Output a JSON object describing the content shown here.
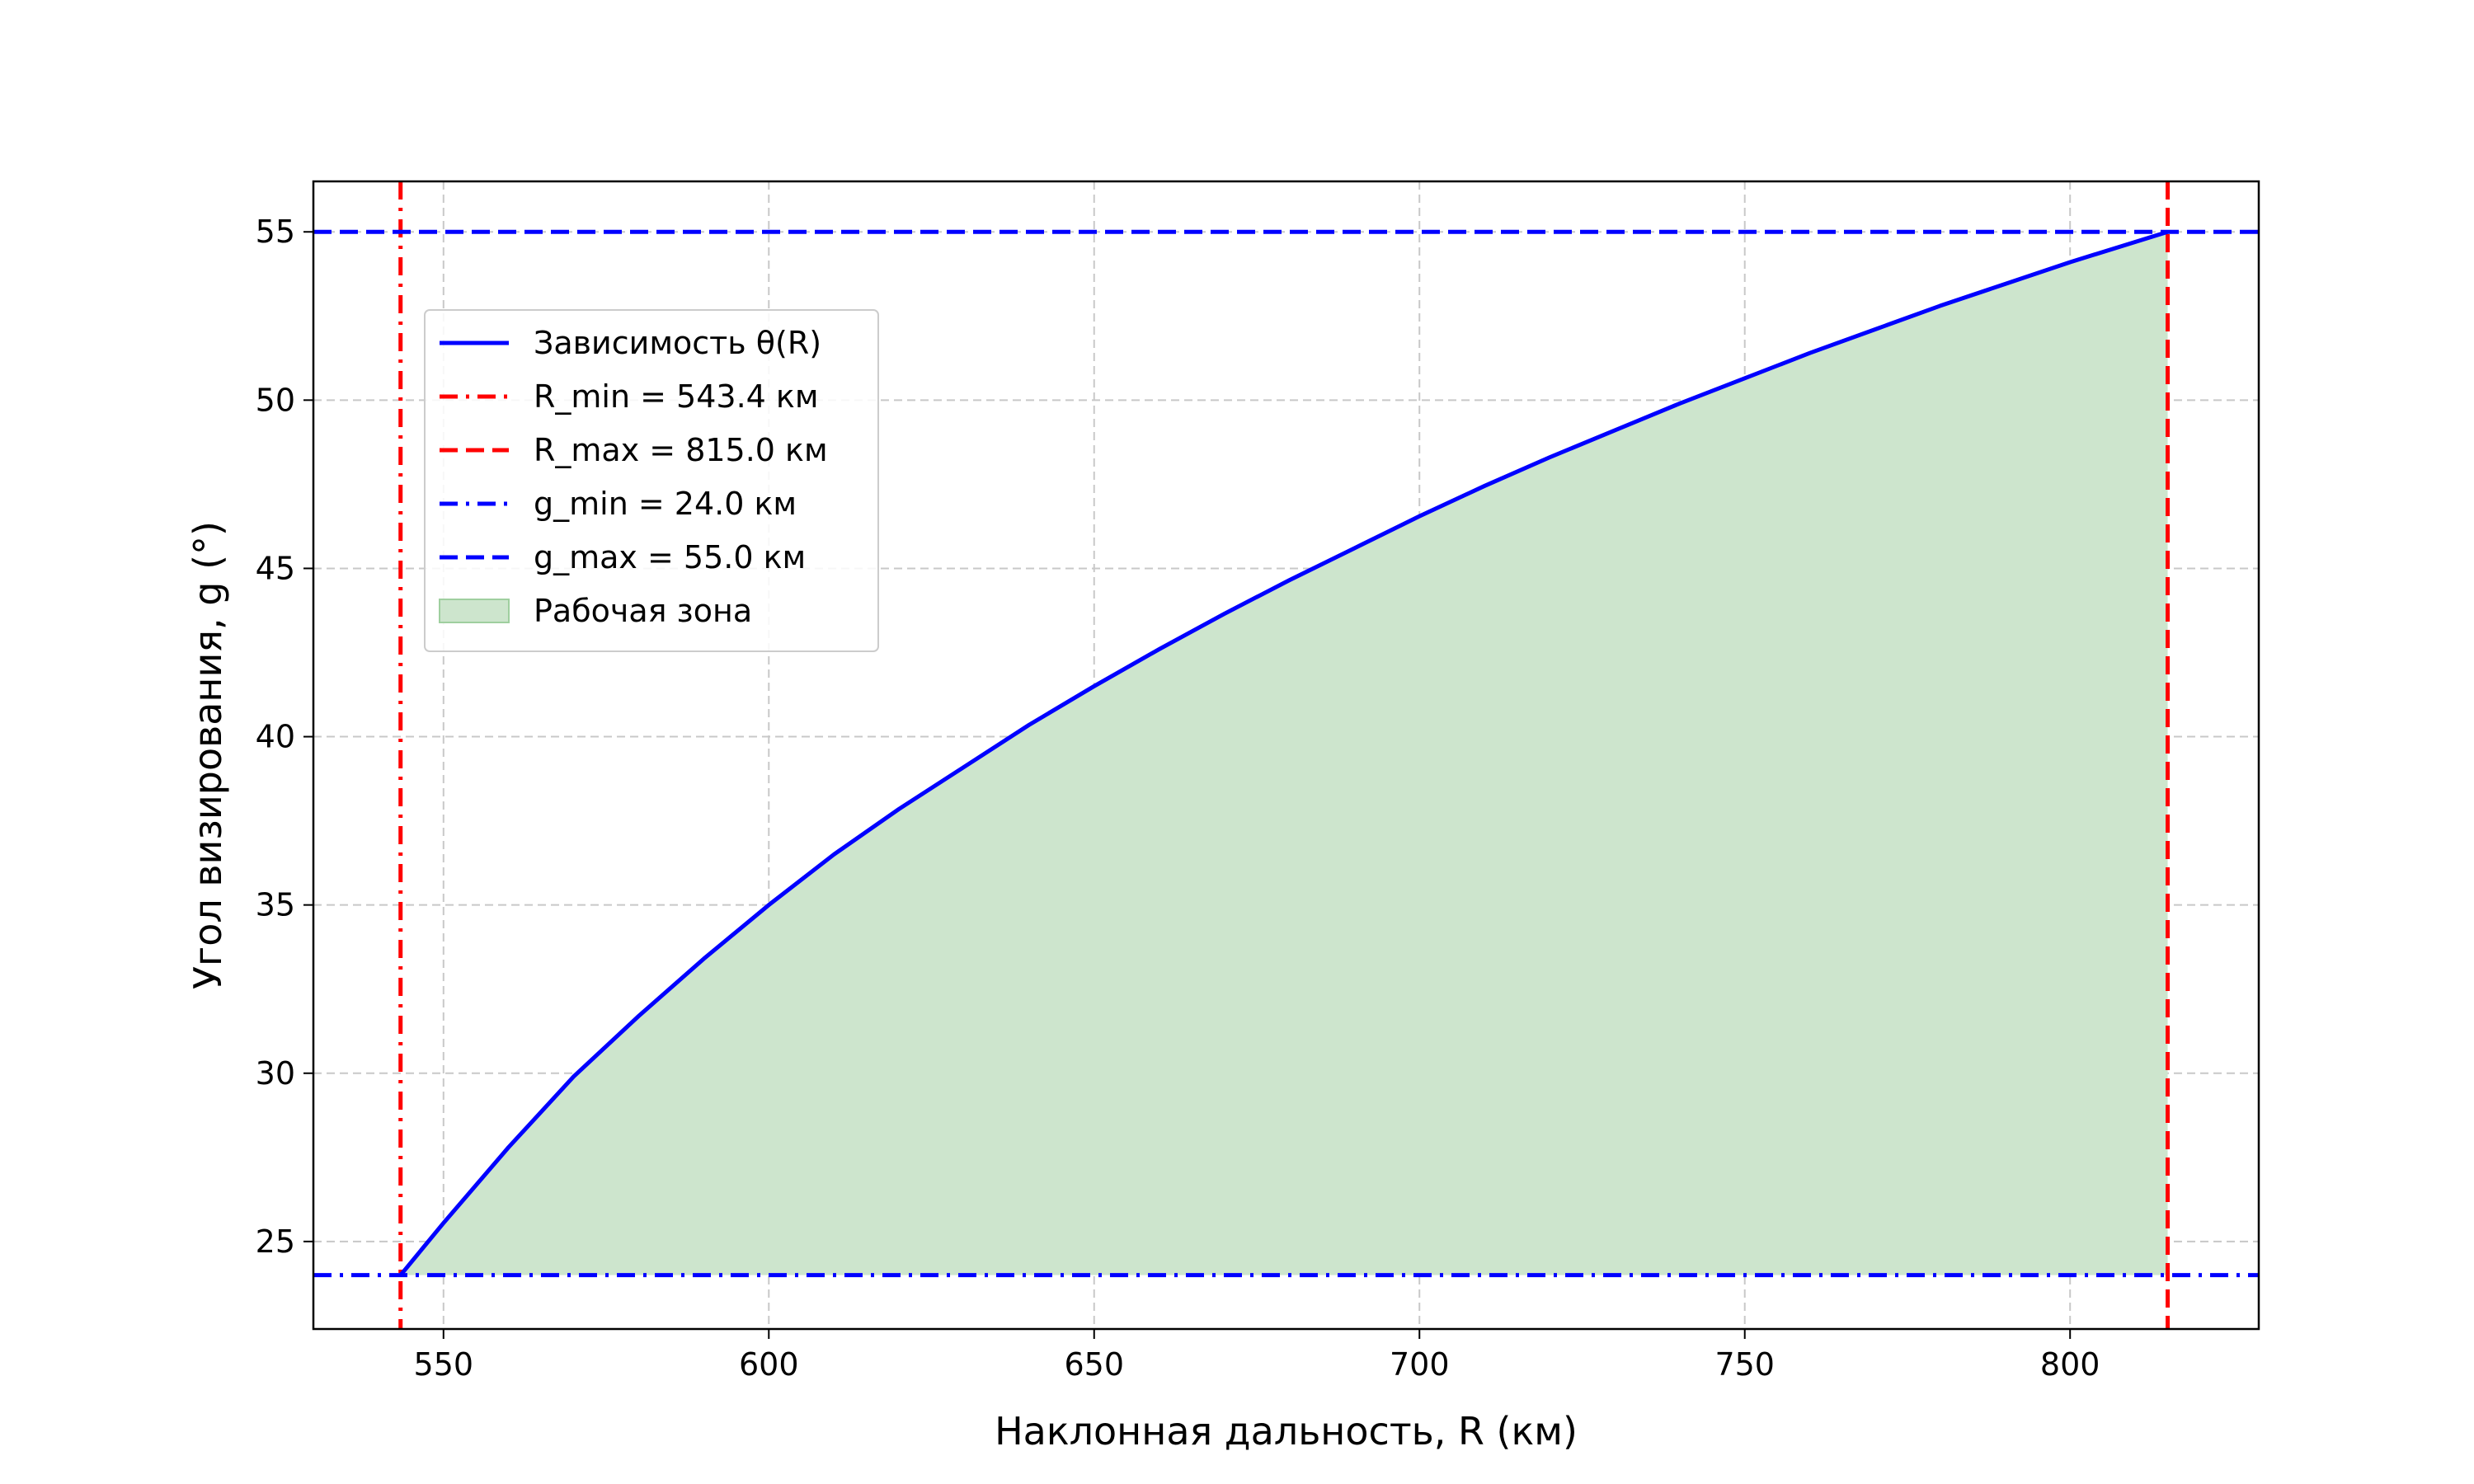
{
  "chart_data": {
    "type": "line",
    "title": "",
    "xlabel": "Наклонная дальность, R (км)",
    "ylabel": "Угол визирования, g (°)",
    "xlim": [
      530,
      829
    ],
    "ylim": [
      22.4,
      56.5
    ],
    "xticks": [
      550,
      600,
      650,
      700,
      750,
      800
    ],
    "yticks": [
      25,
      30,
      35,
      40,
      45,
      50,
      55
    ],
    "grid": true,
    "legend_position": "upper-left",
    "series": [
      {
        "name": "Зависимость θ(R)",
        "color": "#0000ff",
        "x": [
          543.4,
          550,
          560,
          570,
          580,
          590,
          600,
          610,
          620,
          630,
          640,
          650,
          660,
          670,
          680,
          690,
          700,
          710,
          720,
          730,
          740,
          750,
          760,
          770,
          780,
          790,
          800,
          810,
          815
        ],
        "y": [
          24.0,
          25.55,
          27.8,
          29.9,
          31.7,
          33.4,
          35.0,
          36.5,
          37.85,
          39.1,
          40.35,
          41.5,
          42.6,
          43.65,
          44.65,
          45.6,
          46.55,
          47.45,
          48.3,
          49.1,
          49.9,
          50.65,
          51.4,
          52.1,
          52.8,
          53.45,
          54.1,
          54.7,
          55.0
        ]
      }
    ],
    "reference_lines": [
      {
        "name": "R_min = 543.4 км",
        "orientation": "vertical",
        "value": 543.4,
        "color": "#ff0000",
        "style": "dashdot"
      },
      {
        "name": "R_max = 815.0 км",
        "orientation": "vertical",
        "value": 815.0,
        "color": "#ff0000",
        "style": "dashed"
      },
      {
        "name": "g_min = 24.0 км",
        "orientation": "horizontal",
        "value": 24.0,
        "color": "#0000ff",
        "style": "dashdot"
      },
      {
        "name": "g_max = 55.0 км",
        "orientation": "horizontal",
        "value": 55.0,
        "color": "#0000ff",
        "style": "dashed"
      }
    ],
    "fill": {
      "name": "Рабочая зона",
      "color": "#cde5cd",
      "edge_color": "#9fcf9f",
      "baseline": 24.0
    }
  }
}
